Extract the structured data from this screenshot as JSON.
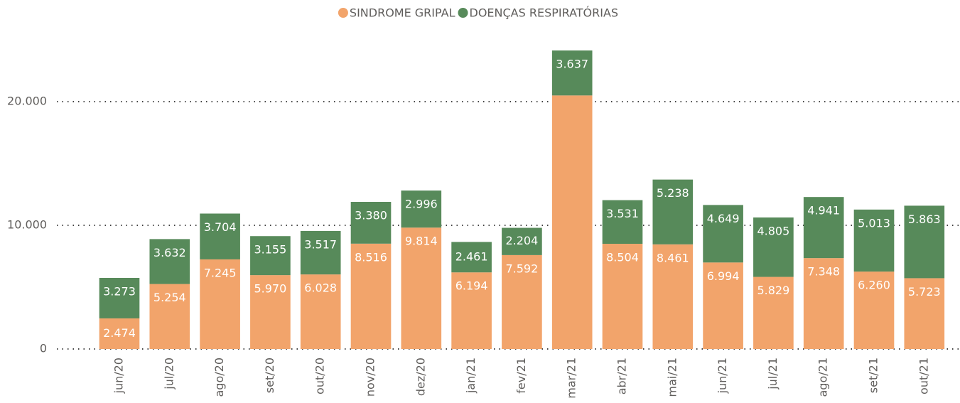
{
  "chart_data": {
    "type": "stacked-bar",
    "categories": [
      "jun/20",
      "jul/20",
      "ago/20",
      "set/20",
      "out/20",
      "nov/20",
      "dez/20",
      "jan/21",
      "fev/21",
      "mar/21",
      "abr/21",
      "mai/21",
      "jun/21",
      "jul/21",
      "ago/21",
      "set/21",
      "out/21"
    ],
    "series": [
      {
        "name": "SINDROME GRIPAL",
        "color": "#f2a46b",
        "values": [
          2474,
          5254,
          7245,
          5970,
          6028,
          8516,
          9814,
          6194,
          7592,
          20500,
          8504,
          8461,
          6994,
          5829,
          7348,
          6260,
          5723
        ],
        "value_labels": [
          "2.474",
          "5.254",
          "7.245",
          "5.970",
          "6.028",
          "8.516",
          "9.814",
          "6.194",
          "7.592",
          null,
          "8.504",
          "8.461",
          "6.994",
          "5.829",
          "7.348",
          "6.260",
          "5.723"
        ]
      },
      {
        "name": "DOENÇAS RESPIRATÓRIAS",
        "color": "#578a5a",
        "values": [
          3273,
          3632,
          3704,
          3155,
          3517,
          3380,
          2996,
          2461,
          2204,
          3637,
          3531,
          5238,
          4649,
          4805,
          4941,
          5013,
          5863
        ],
        "value_labels": [
          "3.273",
          "3.632",
          "3.704",
          "3.155",
          "3.517",
          "3.380",
          "2.996",
          "2.461",
          "2.204",
          "3.637",
          "3.531",
          "5.238",
          "4.649",
          "4.805",
          "4.941",
          "5.013",
          "5.863"
        ]
      }
    ],
    "ylim": [
      0,
      25000
    ],
    "yticks": [
      0,
      {
        "value": 10000,
        "label": "10.000"
      },
      {
        "value": 20000,
        "label": "20.000"
      }
    ],
    "grid": true,
    "legend": "top"
  }
}
